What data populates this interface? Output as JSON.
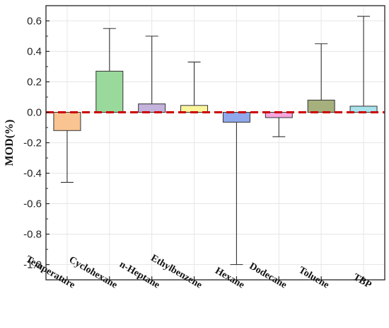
{
  "chart_data": {
    "type": "bar",
    "title": "",
    "xlabel": "",
    "ylabel": "MOD(%)",
    "ylim": [
      -1.1,
      0.7
    ],
    "yticks": [
      0.6,
      0.4,
      0.2,
      0.0,
      -0.2,
      -0.4,
      -0.6,
      -0.8,
      -1.0
    ],
    "ytick_labels": [
      "0.6",
      "0.4",
      "0.2",
      "0.0",
      "-0.2",
      "-0.4",
      "-0.6",
      "-0.8",
      "-1.0"
    ],
    "grid": true,
    "categories": [
      "Temperature",
      "Cyclohexane",
      "n-Heptane",
      "Ethylbenzene",
      "Hexane",
      "Dodecane",
      "Toluene",
      "TBP"
    ],
    "values": [
      -0.12,
      0.27,
      0.055,
      0.045,
      -0.065,
      -0.035,
      0.08,
      0.04
    ],
    "whisker_ends": [
      -0.46,
      0.55,
      0.5,
      0.33,
      -1.0,
      -0.16,
      0.45,
      0.63
    ],
    "bar_colors": [
      "#f9c392",
      "#99d99b",
      "#c4b3dc",
      "#fbf59c",
      "#8fa9ec",
      "#f7a6de",
      "#a6b07c",
      "#a9e3ec"
    ],
    "reference_line": {
      "value": 0.0,
      "color": "#cc0000"
    }
  }
}
